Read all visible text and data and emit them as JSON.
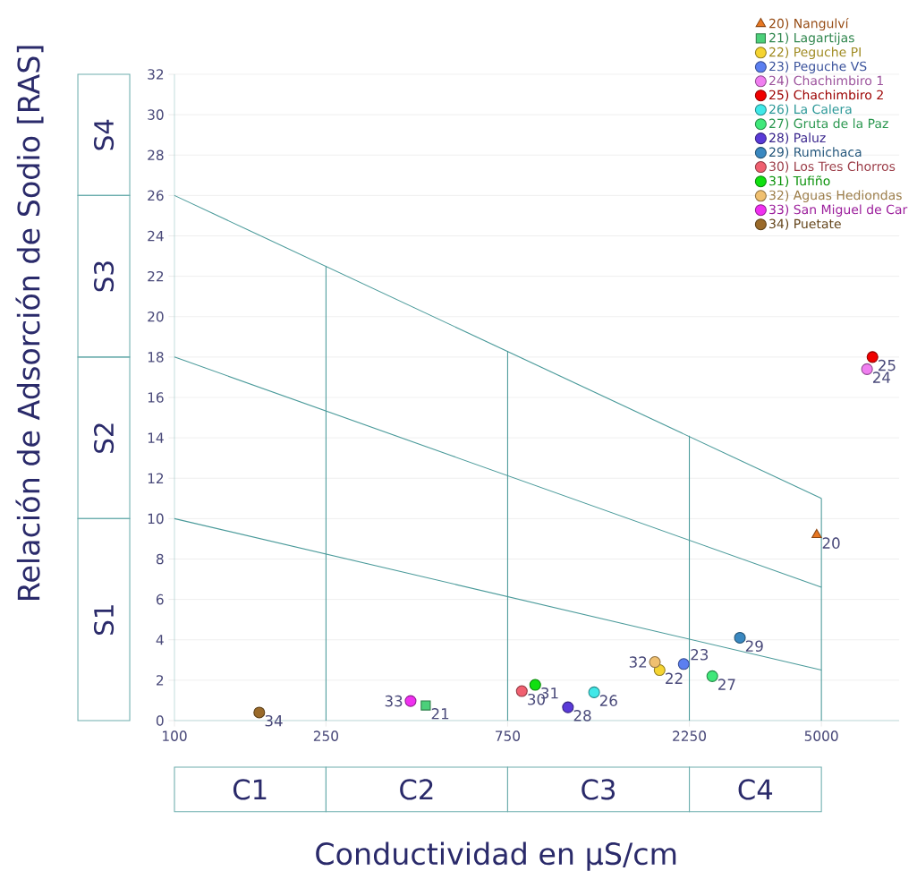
{
  "chart_data": {
    "type": "scatter",
    "xlabel": "Conductividad en μS/cm",
    "ylabel": "Relación de Adsorción de Sodio [RAS]",
    "log": "x",
    "xlim": [
      100,
      8000
    ],
    "ylim": [
      0,
      32
    ],
    "xticks": [
      100,
      250,
      750,
      2250,
      5000
    ],
    "yticks": [
      0,
      2,
      4,
      6,
      8,
      10,
      12,
      14,
      16,
      18,
      20,
      22,
      24,
      26,
      28,
      30,
      32
    ],
    "grid": "y",
    "legend": "top right",
    "series": [
      {
        "name": "20) Nangulví",
        "color": "#e87722",
        "marker": "triangle",
        "x": [
          4860
        ],
        "values": [
          9.2
        ]
      },
      {
        "name": "21) Lagartijas",
        "color": "#4cd07a",
        "marker": "square",
        "x": [
          457
        ],
        "values": [
          0.75
        ]
      },
      {
        "name": "22) Peguche PI",
        "color": "#f5d431",
        "marker": "circle",
        "x": [
          1880
        ],
        "values": [
          2.5
        ]
      },
      {
        "name": "23) Peguche VS",
        "color": "#5b7ff0",
        "marker": "circle",
        "x": [
          2175
        ],
        "values": [
          2.8
        ]
      },
      {
        "name": "24) Chachimbiro 1",
        "color": "#f07ef0",
        "marker": "circle",
        "x": [
          6590
        ],
        "values": [
          17.4
        ]
      },
      {
        "name": "25) Chachimbiro 2",
        "color": "#f00000",
        "marker": "circle",
        "x": [
          6810
        ],
        "values": [
          18
        ]
      },
      {
        "name": "26) La Calera",
        "color": "#40e8e8",
        "marker": "circle",
        "x": [
          1265
        ],
        "values": [
          1.4
        ]
      },
      {
        "name": "27) Gruta de la Paz",
        "color": "#40e87a",
        "marker": "circle",
        "x": [
          2585
        ],
        "values": [
          2.2
        ]
      },
      {
        "name": "28) Paluz",
        "color": "#5a3ad8",
        "marker": "circle",
        "x": [
          1080
        ],
        "values": [
          0.66
        ]
      },
      {
        "name": "29) Rumichaca",
        "color": "#3a88c0",
        "marker": "circle",
        "x": [
          3055
        ],
        "values": [
          4.1
        ]
      },
      {
        "name": "30) Los Tres Chorros",
        "color": "#f06070",
        "marker": "circle",
        "x": [
          817
        ],
        "values": [
          1.46
        ]
      },
      {
        "name": "31) Tufiño",
        "color": "#10e010",
        "marker": "circle",
        "x": [
          886
        ],
        "values": [
          1.77
        ]
      },
      {
        "name": "32) Aguas Hediondas",
        "color": "#f0c070",
        "marker": "circle",
        "x": [
          1827
        ],
        "values": [
          2.9
        ]
      },
      {
        "name": "33) San Miguel de Car",
        "color": "#f030f0",
        "marker": "circle",
        "x": [
          417
        ],
        "values": [
          0.97
        ]
      },
      {
        "name": "34) Puetate",
        "color": "#9a6a2a",
        "marker": "circle",
        "x": [
          167
        ],
        "values": [
          0.4
        ]
      },
      {
        "type": "line",
        "color": "#4a9a9a",
        "x": [
          100,
          5000
        ],
        "values": [
          10,
          2.5
        ]
      },
      {
        "type": "line",
        "color": "#4a9a9a",
        "x": [
          100,
          5000
        ],
        "values": [
          18,
          6.6
        ]
      },
      {
        "type": "line",
        "color": "#4a9a9a",
        "x": [
          100,
          5000
        ],
        "values": [
          26,
          11
        ]
      },
      {
        "type": "line",
        "color": "#4a9a9a",
        "x": [
          250,
          250
        ],
        "values": [
          0,
          22.5
        ]
      },
      {
        "type": "line",
        "color": "#4a9a9a",
        "x": [
          750,
          750
        ],
        "values": [
          0,
          18.3
        ]
      },
      {
        "type": "line",
        "color": "#4a9a9a",
        "x": [
          2250,
          2250
        ],
        "values": [
          0,
          14.1
        ]
      },
      {
        "type": "line",
        "color": "#4a9a9a",
        "x": [
          5000,
          5000
        ],
        "values": [
          0,
          11
        ]
      }
    ],
    "annotations": [
      "C1",
      "C2",
      "C3",
      "C4",
      "S1",
      "S2",
      "S3",
      "S4",
      {
        "text": "20",
        "x": 4860,
        "y": 9.2
      },
      {
        "text": "21",
        "x": 457,
        "y": 0.75
      },
      {
        "text": "22",
        "x": 1880,
        "y": 2.5
      },
      {
        "text": "23",
        "x": 2175,
        "y": 2.8
      },
      {
        "text": "24",
        "x": 6590,
        "y": 17.4
      },
      {
        "text": "25",
        "x": 6810,
        "y": 18
      },
      {
        "text": "26",
        "x": 1265,
        "y": 1.4
      },
      {
        "text": "27",
        "x": 2585,
        "y": 2.2
      },
      {
        "text": "28",
        "x": 1080,
        "y": 0.66
      },
      {
        "text": "29",
        "x": 3055,
        "y": 4.1
      },
      {
        "text": "30",
        "x": 817,
        "y": 1.46
      },
      {
        "text": "31",
        "x": 886,
        "y": 1.77
      },
      {
        "text": "32",
        "x": 1827,
        "y": 2.9
      },
      {
        "text": "33",
        "x": 417,
        "y": 0.97
      },
      {
        "text": "34",
        "x": 167,
        "y": 0.4
      }
    ]
  }
}
